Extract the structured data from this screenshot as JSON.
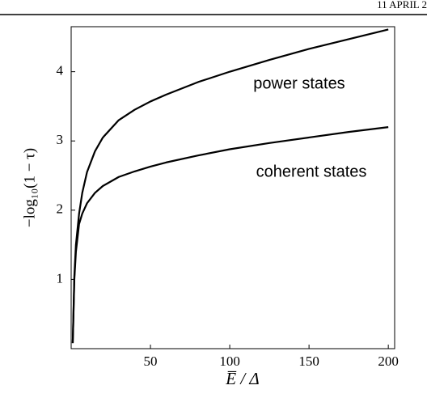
{
  "page_header": "11 APRIL 2",
  "chart_data": {
    "type": "line",
    "xlabel": "E̅ / Δ",
    "ylabel": "−log₁₀(1 − τ)",
    "annotations": [
      "power states",
      "coherent states"
    ],
    "x": [
      1,
      2,
      3,
      5,
      7,
      10,
      15,
      20,
      30,
      40,
      50,
      60,
      80,
      100,
      125,
      150,
      175,
      200
    ],
    "series": [
      {
        "color": "#000000",
        "values": [
          0.08,
          1.05,
          1.5,
          1.95,
          2.25,
          2.55,
          2.85,
          3.05,
          3.3,
          3.45,
          3.57,
          3.67,
          3.85,
          4.0,
          4.17,
          4.33,
          4.47,
          4.61
        ]
      },
      {
        "color": "#000000",
        "values": [
          0.08,
          1.0,
          1.4,
          1.8,
          1.95,
          2.1,
          2.25,
          2.35,
          2.48,
          2.56,
          2.63,
          2.69,
          2.79,
          2.88,
          2.97,
          3.05,
          3.13,
          3.2
        ]
      }
    ],
    "xlim": [
      0,
      204
    ],
    "ylim": [
      0,
      4.65
    ],
    "xticks": [
      50,
      100,
      150,
      200
    ],
    "yticks": [
      1,
      2,
      3,
      4
    ]
  }
}
